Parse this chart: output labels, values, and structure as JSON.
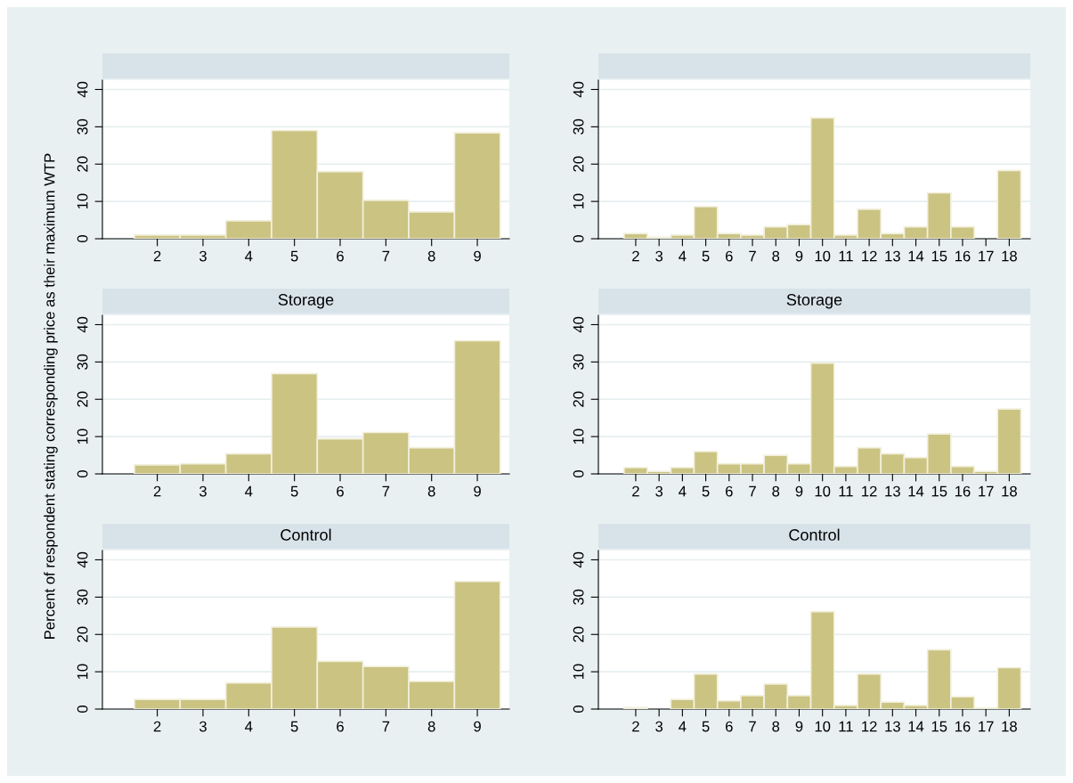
{
  "chart_data": [
    {
      "type": "histogram",
      "bins": [
        1.5,
        2.5,
        3.5,
        4.5,
        5.5,
        6.5,
        7.5,
        8.5,
        9.5
      ],
      "values": [
        1.0,
        1.0,
        4.8,
        29.0,
        18.0,
        10.3,
        7.2,
        28.4
      ],
      "color": "#cbc382",
      "xlim": [
        0.8,
        9.7
      ],
      "xticks": [
        2,
        3,
        4,
        5,
        6,
        7,
        8,
        9
      ],
      "ylim": [
        0,
        42.5
      ],
      "yticks": [
        0,
        10,
        20,
        30,
        40
      ],
      "grid": "y"
    },
    {
      "type": "histogram",
      "bins": [
        1.5,
        2.5,
        3.5,
        4.5,
        5.5,
        6.5,
        7.5,
        8.5,
        9.5,
        10.5,
        11.5,
        12.5,
        13.5,
        14.5,
        15.5,
        16.5,
        17.5,
        18.5
      ],
      "values": [
        1.4,
        0.4,
        1.0,
        8.6,
        1.4,
        1.0,
        3.2,
        3.8,
        32.4,
        1.0,
        7.9,
        1.4,
        3.2,
        12.3,
        3.2,
        0,
        18.3
      ],
      "color": "#cbc382",
      "xlim": [
        0.4,
        18.9
      ],
      "xticks": [
        2,
        3,
        4,
        5,
        6,
        7,
        8,
        9,
        10,
        11,
        12,
        13,
        14,
        15,
        16,
        17,
        18
      ],
      "ylim": [
        0,
        42.5
      ],
      "yticks": [
        0,
        10,
        20,
        30,
        40
      ],
      "grid": "y"
    },
    {
      "type": "histogram",
      "title": "Storage",
      "ylabel": "Percent of respondent stating corresponding price as their maximum WTP",
      "bins": [
        1.5,
        2.5,
        3.5,
        4.5,
        5.5,
        6.5,
        7.5,
        8.5,
        9.5
      ],
      "values": [
        2.4,
        2.7,
        5.4,
        26.9,
        9.4,
        11.1,
        7.0,
        35.7
      ],
      "color": "#cbc382",
      "xlim": [
        0.8,
        9.7
      ],
      "xticks": [
        2,
        3,
        4,
        5,
        6,
        7,
        8,
        9
      ],
      "ylim": [
        0,
        42.5
      ],
      "yticks": [
        0,
        10,
        20,
        30,
        40
      ],
      "grid": "y"
    },
    {
      "type": "histogram",
      "title": "Storage",
      "bins": [
        1.5,
        2.5,
        3.5,
        4.5,
        5.5,
        6.5,
        7.5,
        8.5,
        9.5,
        10.5,
        11.5,
        12.5,
        13.5,
        14.5,
        15.5,
        16.5,
        17.5,
        18.5
      ],
      "values": [
        1.7,
        0.7,
        1.7,
        6.0,
        2.7,
        2.7,
        5.0,
        2.7,
        29.7,
        2.0,
        7.0,
        5.4,
        4.4,
        10.7,
        2.0,
        0.7,
        17.4
      ],
      "color": "#cbc382",
      "xlim": [
        0.4,
        18.9
      ],
      "xticks": [
        2,
        3,
        4,
        5,
        6,
        7,
        8,
        9,
        10,
        11,
        12,
        13,
        14,
        15,
        16,
        17,
        18
      ],
      "ylim": [
        0,
        42.5
      ],
      "yticks": [
        0,
        10,
        20,
        30,
        40
      ],
      "grid": "y"
    },
    {
      "type": "histogram",
      "title": "Control",
      "bins": [
        1.5,
        2.5,
        3.5,
        4.5,
        5.5,
        6.5,
        7.5,
        8.5,
        9.5
      ],
      "values": [
        2.6,
        2.6,
        7.0,
        22.0,
        12.8,
        11.4,
        7.4,
        34.2
      ],
      "color": "#cbc382",
      "xlim": [
        0.8,
        9.7
      ],
      "xticks": [
        2,
        3,
        4,
        5,
        6,
        7,
        8,
        9
      ],
      "ylim": [
        0,
        42.5
      ],
      "yticks": [
        0,
        10,
        20,
        30,
        40
      ],
      "grid": "y"
    },
    {
      "type": "histogram",
      "title": "Control",
      "bins": [
        1.5,
        2.5,
        3.5,
        4.5,
        5.5,
        6.5,
        7.5,
        8.5,
        9.5,
        10.5,
        11.5,
        12.5,
        13.5,
        14.5,
        15.5,
        16.5,
        17.5,
        18.5
      ],
      "values": [
        0.4,
        0,
        2.6,
        9.4,
        2.2,
        3.6,
        6.7,
        3.6,
        26.1,
        1.0,
        9.4,
        1.9,
        1.0,
        15.9,
        3.3,
        0.3,
        11.1
      ],
      "color": "#cbc382",
      "xlim": [
        0.4,
        18.9
      ],
      "xticks": [
        2,
        3,
        4,
        5,
        6,
        7,
        8,
        9,
        10,
        11,
        12,
        13,
        14,
        15,
        16,
        17,
        18
      ],
      "ylim": [
        0,
        42.5
      ],
      "yticks": [
        0,
        10,
        20,
        30,
        40
      ],
      "grid": "y"
    }
  ]
}
